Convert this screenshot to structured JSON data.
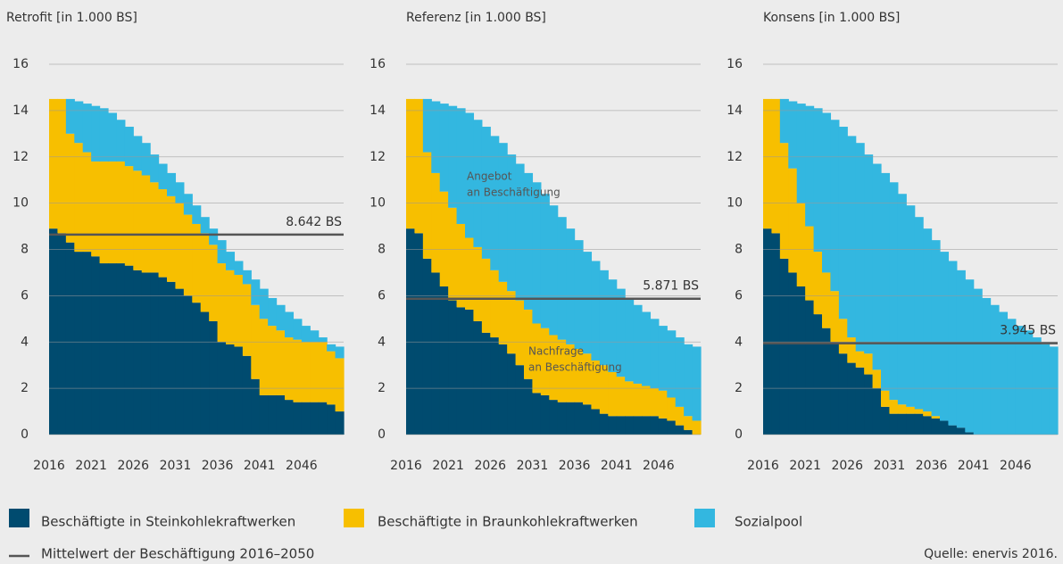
{
  "chart_data": [
    {
      "type": "stacked-step",
      "title": "Retrofit [in 1.000 BS]",
      "x": [
        2016,
        2017,
        2018,
        2019,
        2020,
        2021,
        2022,
        2023,
        2024,
        2025,
        2026,
        2027,
        2028,
        2029,
        2030,
        2031,
        2032,
        2033,
        2034,
        2035,
        2036,
        2037,
        2038,
        2039,
        2040,
        2041,
        2042,
        2043,
        2044,
        2045,
        2046,
        2047,
        2048,
        2049,
        2050
      ],
      "xlim": [
        2016,
        2051
      ],
      "xticks": [
        2016,
        2021,
        2026,
        2031,
        2036,
        2041,
        2046
      ],
      "ylim": [
        0,
        16
      ],
      "yticks": [
        0,
        2,
        4,
        6,
        8,
        10,
        12,
        14,
        16
      ],
      "grid": true,
      "series": [
        {
          "values": [
            8.9,
            8.7,
            8.3,
            7.9,
            7.9,
            7.7,
            7.4,
            7.4,
            7.4,
            7.3,
            7.1,
            7.0,
            7.0,
            6.8,
            6.6,
            6.3,
            6.0,
            5.7,
            5.3,
            4.9,
            4.0,
            3.9,
            3.8,
            3.4,
            2.4,
            1.7,
            1.7,
            1.7,
            1.5,
            1.4,
            1.4,
            1.4,
            1.4,
            1.3,
            1.0
          ]
        },
        {
          "values": [
            5.6,
            5.8,
            4.7,
            4.7,
            4.3,
            4.1,
            4.4,
            4.4,
            4.4,
            4.3,
            4.3,
            4.2,
            3.9,
            3.8,
            3.7,
            3.7,
            3.5,
            3.4,
            3.4,
            3.3,
            3.4,
            3.2,
            3.1,
            3.1,
            3.2,
            3.3,
            3.0,
            2.8,
            2.7,
            2.7,
            2.6,
            2.6,
            2.6,
            2.3,
            2.3
          ]
        },
        {
          "values": [
            0,
            0,
            1.5,
            1.8,
            2.1,
            2.4,
            2.3,
            2.1,
            1.8,
            1.7,
            1.5,
            1.4,
            1.2,
            1.1,
            1.0,
            0.9,
            0.9,
            0.8,
            0.7,
            0.7,
            1.0,
            0.8,
            0.6,
            0.6,
            1.1,
            1.3,
            1.2,
            1.1,
            1.1,
            0.9,
            0.7,
            0.5,
            0.2,
            0.3,
            0.5
          ]
        }
      ],
      "mean": 8.642,
      "mean_label": "8.642 BS"
    },
    {
      "type": "stacked-step",
      "title": "Referenz [in 1.000 BS]",
      "x": [
        2016,
        2017,
        2018,
        2019,
        2020,
        2021,
        2022,
        2023,
        2024,
        2025,
        2026,
        2027,
        2028,
        2029,
        2030,
        2031,
        2032,
        2033,
        2034,
        2035,
        2036,
        2037,
        2038,
        2039,
        2040,
        2041,
        2042,
        2043,
        2044,
        2045,
        2046,
        2047,
        2048,
        2049,
        2050
      ],
      "xlim": [
        2016,
        2051
      ],
      "xticks": [
        2016,
        2021,
        2026,
        2031,
        2036,
        2041,
        2046
      ],
      "ylim": [
        0,
        16
      ],
      "yticks": [
        0,
        2,
        4,
        6,
        8,
        10,
        12,
        14,
        16
      ],
      "grid": true,
      "series": [
        {
          "values": [
            8.9,
            8.7,
            7.6,
            7.0,
            6.4,
            5.8,
            5.5,
            5.4,
            4.9,
            4.4,
            4.2,
            3.9,
            3.5,
            3.0,
            2.4,
            1.8,
            1.7,
            1.5,
            1.4,
            1.4,
            1.4,
            1.3,
            1.1,
            0.9,
            0.8,
            0.8,
            0.8,
            0.8,
            0.8,
            0.8,
            0.7,
            0.6,
            0.4,
            0.2,
            0.0
          ]
        },
        {
          "values": [
            5.6,
            5.8,
            4.6,
            4.3,
            4.1,
            4.0,
            3.6,
            3.1,
            3.2,
            3.2,
            2.9,
            2.7,
            2.7,
            2.8,
            3.0,
            3.0,
            2.9,
            2.8,
            2.7,
            2.5,
            2.3,
            2.2,
            2.1,
            2.1,
            1.9,
            1.7,
            1.5,
            1.4,
            1.3,
            1.2,
            1.2,
            1.0,
            0.8,
            0.6,
            0.6
          ]
        },
        {
          "values": [
            0,
            0,
            2.3,
            3.1,
            3.8,
            4.4,
            5.0,
            5.4,
            5.5,
            5.7,
            5.8,
            6.0,
            5.9,
            5.9,
            5.9,
            6.1,
            5.8,
            5.6,
            5.3,
            5.0,
            4.7,
            4.4,
            4.3,
            4.1,
            4.0,
            3.8,
            3.6,
            3.4,
            3.2,
            3.0,
            2.8,
            2.9,
            3.0,
            3.1,
            3.2
          ]
        }
      ],
      "mean": 5.871,
      "mean_label": "5.871 BS",
      "annotations": [
        [
          "Angebot",
          "an Beschäftigung"
        ],
        [
          "Nachfrage",
          "an Beschäftigung"
        ]
      ]
    },
    {
      "type": "stacked-step",
      "title": "Konsens [in 1.000 BS]",
      "x": [
        2016,
        2017,
        2018,
        2019,
        2020,
        2021,
        2022,
        2023,
        2024,
        2025,
        2026,
        2027,
        2028,
        2029,
        2030,
        2031,
        2032,
        2033,
        2034,
        2035,
        2036,
        2037,
        2038,
        2039,
        2040,
        2041,
        2042,
        2043,
        2044,
        2045,
        2046,
        2047,
        2048,
        2049,
        2050
      ],
      "xlim": [
        2016,
        2051
      ],
      "xticks": [
        2016,
        2021,
        2026,
        2031,
        2036,
        2041,
        2046
      ],
      "ylim": [
        0,
        16
      ],
      "yticks": [
        0,
        2,
        4,
        6,
        8,
        10,
        12,
        14,
        16
      ],
      "grid": true,
      "series": [
        {
          "values": [
            8.9,
            8.7,
            7.6,
            7.0,
            6.4,
            5.8,
            5.2,
            4.6,
            4.0,
            3.5,
            3.1,
            2.9,
            2.6,
            2.0,
            1.2,
            0.9,
            0.9,
            0.9,
            0.9,
            0.8,
            0.7,
            0.6,
            0.4,
            0.3,
            0.1,
            0,
            0,
            0,
            0,
            0,
            0,
            0,
            0,
            0,
            0
          ]
        },
        {
          "values": [
            5.6,
            5.8,
            5.0,
            4.5,
            3.6,
            3.2,
            2.7,
            2.4,
            2.2,
            1.5,
            1.1,
            0.7,
            0.9,
            0.8,
            0.7,
            0.6,
            0.4,
            0.3,
            0.2,
            0.2,
            0.1,
            0,
            0,
            0,
            0,
            0,
            0,
            0,
            0,
            0,
            0,
            0,
            0,
            0,
            0
          ]
        },
        {
          "values": [
            0,
            0,
            1.9,
            2.9,
            4.3,
            5.2,
            6.2,
            6.9,
            7.4,
            8.3,
            8.7,
            9.0,
            8.6,
            8.9,
            9.4,
            9.4,
            9.1,
            8.7,
            8.3,
            7.9,
            7.6,
            7.3,
            7.1,
            6.8,
            6.6,
            6.3,
            5.9,
            5.6,
            5.3,
            5.0,
            4.7,
            4.5,
            4.2,
            3.9,
            3.8
          ]
        }
      ],
      "mean": 3.945,
      "mean_label": "3.945 BS"
    }
  ],
  "legend": [
    {
      "name": "Beschäftigte in Steinkohlekraftwerken",
      "color": "#004b6f"
    },
    {
      "name": "Beschäftigte in Braunkohlekraftwerken",
      "color": "#f7bf00"
    },
    {
      "name": "Sozialpool",
      "color": "#33b7e0"
    }
  ],
  "mean_legend": "Mittelwert der Beschäftigung 2016–2050",
  "mean_color": "#555555",
  "source": "Quelle: enervis 2016."
}
